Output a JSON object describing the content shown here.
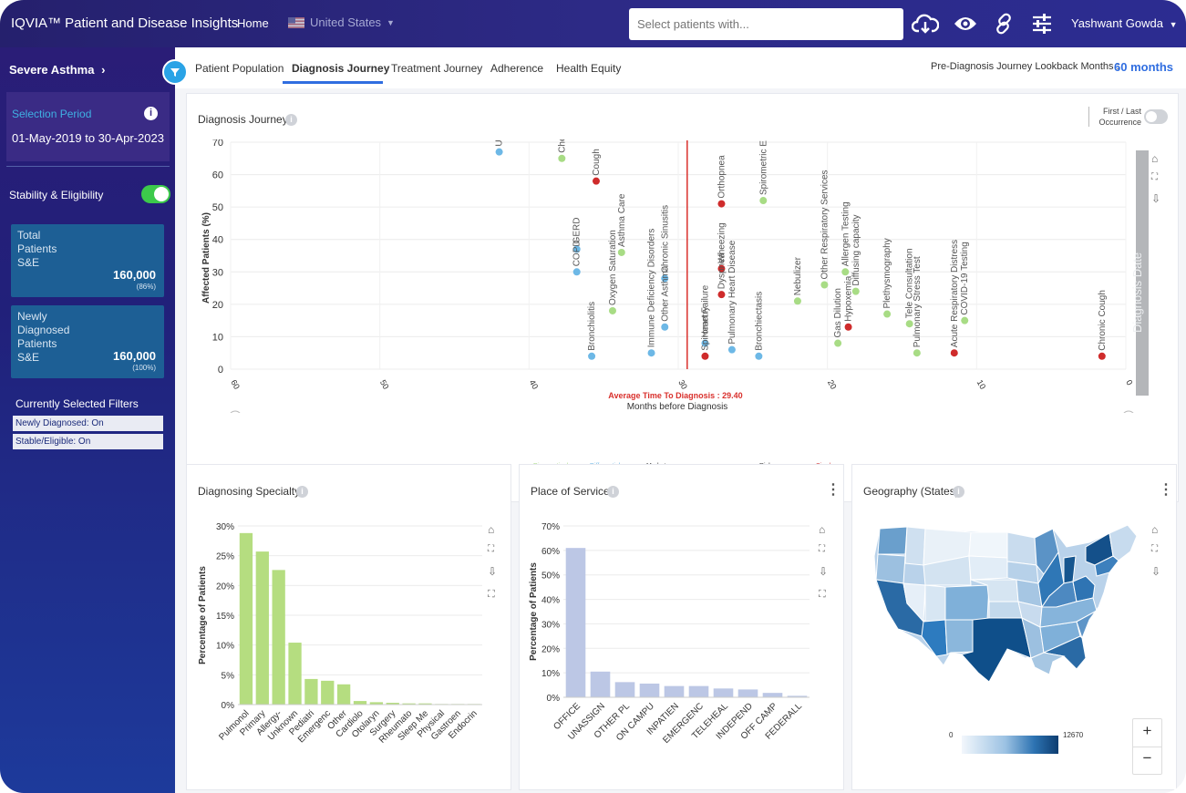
{
  "header": {
    "brand": "IQVIA™ Patient and Disease Insights",
    "home": "Home",
    "country": "United States",
    "search_placeholder": "Select patients with...",
    "user": "Yashwant Gowda"
  },
  "sidebar": {
    "condition": "Severe Asthma",
    "selection_label": "Selection Period",
    "selection_value": "01-May-2019 to 30-Apr-2023",
    "stability_label": "Stability & Eligibility",
    "cards": [
      {
        "label_lines": [
          "Total",
          "Patients",
          "S&E"
        ],
        "value": "160,000",
        "pct": "(86%)"
      },
      {
        "label_lines": [
          "Newly",
          "Diagnosed",
          "Patients",
          "S&E"
        ],
        "value": "160,000",
        "pct": "(100%)"
      }
    ],
    "filters_title": "Currently Selected Filters",
    "filters": [
      "Newly Diagnosed: On",
      "Stable/Eligible: On"
    ]
  },
  "tabs": [
    "Patient Population",
    "Diagnosis Journey",
    "Treatment Journey",
    "Adherence",
    "Health Equity"
  ],
  "active_tab": "Diagnosis Journey",
  "lookback": {
    "label": "Pre-Diagnosis Journey Lookback Months :",
    "value": "60 months"
  },
  "journey": {
    "title": "Diagnosis Journey",
    "toggle_label": "First / Last Occurrence",
    "side_label": "Diagnosis Date",
    "avg_label": "Average Time To Diagnosis : 29.40"
  },
  "panels": {
    "specialty": "Diagnosing Specialty",
    "place": "Place of Service",
    "geography": "Geography (States)"
  },
  "map_legend": {
    "min": "0",
    "max": "12670"
  },
  "zoom": {
    "plus": "+",
    "minus": "−"
  },
  "chart_data": [
    {
      "type": "scatter",
      "title": "Diagnosis Journey",
      "xlabel": "Months before Diagnosis",
      "ylabel": "Affected Patients (%)",
      "xlim": [
        60,
        0
      ],
      "ylim": [
        0,
        70
      ],
      "xticks": [
        "60",
        "50",
        "40",
        "30",
        "20",
        "10",
        "0"
      ],
      "yticks": [
        "0",
        "10",
        "20",
        "30",
        "40",
        "50",
        "60",
        "70"
      ],
      "reference_line": {
        "x": 29.4,
        "label": "Average Time To Diagnosis : 29.40"
      },
      "legend": [
        {
          "name": "Comorbidity",
          "color": "#dde3ea"
        },
        {
          "name": "Diagnostics/ Procedure",
          "color": "#a8dc85"
        },
        {
          "name": "Differential Diagnosis",
          "color": "#6db8e6"
        },
        {
          "name": "Market Definition",
          "color": "#dde3ea"
        },
        {
          "name": "Medication",
          "color": "#dde3ea"
        },
        {
          "name": "Risk Factor",
          "color": "#dde3ea"
        },
        {
          "name": "Sign/ Symptom",
          "color": "#cf2b2b"
        },
        {
          "name": "Specialty",
          "color": "#dde3ea"
        }
      ],
      "points": [
        {
          "label": "Unsp",
          "x": 42.0,
          "y": 67,
          "cat": "diff"
        },
        {
          "label": "Chest",
          "x": 37.8,
          "y": 65,
          "cat": "diag"
        },
        {
          "label": "Cough",
          "x": 35.5,
          "y": 58,
          "cat": "sign"
        },
        {
          "label": "GERD",
          "x": 36.8,
          "y": 37,
          "cat": "diff"
        },
        {
          "label": "COPD",
          "x": 36.8,
          "y": 30,
          "cat": "diff"
        },
        {
          "label": "Bronchiolitis",
          "x": 35.8,
          "y": 4,
          "cat": "diff"
        },
        {
          "label": "Oxygen Saturation",
          "x": 34.4,
          "y": 18,
          "cat": "diag"
        },
        {
          "label": "Asthma Care",
          "x": 33.8,
          "y": 36,
          "cat": "diag"
        },
        {
          "label": "Immune Deficiency Disorders",
          "x": 31.8,
          "y": 5,
          "cat": "diff"
        },
        {
          "label": "Chronic Sinusitis",
          "x": 30.9,
          "y": 28,
          "cat": "diff"
        },
        {
          "label": "Other Asthma",
          "x": 30.9,
          "y": 13,
          "cat": "diff"
        },
        {
          "label": "Heart Failure",
          "x": 28.2,
          "y": 8,
          "cat": "diff"
        },
        {
          "label": "Spirometry",
          "x": 28.2,
          "y": 4,
          "cat": "sign"
        },
        {
          "label": "Orthopnea",
          "x": 27.1,
          "y": 51,
          "cat": "sign"
        },
        {
          "label": "Wheezing",
          "x": 27.1,
          "y": 31,
          "cat": "sign"
        },
        {
          "label": "Dyspnea",
          "x": 27.1,
          "y": 23,
          "cat": "sign"
        },
        {
          "label": "Pulmonary Heart Disease",
          "x": 26.4,
          "y": 6,
          "cat": "diff"
        },
        {
          "label": "Spirometric E",
          "x": 24.3,
          "y": 52,
          "cat": "diag"
        },
        {
          "label": "Bronchiectasis",
          "x": 24.6,
          "y": 4,
          "cat": "diff"
        },
        {
          "label": "Nebulizer",
          "x": 22.0,
          "y": 21,
          "cat": "diag"
        },
        {
          "label": "Other Respiratory Services",
          "x": 20.2,
          "y": 26,
          "cat": "diag"
        },
        {
          "label": "Gas Dilution",
          "x": 19.3,
          "y": 8,
          "cat": "diag"
        },
        {
          "label": "Allergen Testing",
          "x": 18.8,
          "y": 30,
          "cat": "diag"
        },
        {
          "label": "Hypoxemia",
          "x": 18.6,
          "y": 13,
          "cat": "sign"
        },
        {
          "label": "Diffusing capacity",
          "x": 18.1,
          "y": 24,
          "cat": "diag"
        },
        {
          "label": "Plethysmography",
          "x": 16.0,
          "y": 17,
          "cat": "diag"
        },
        {
          "label": "Tele Consultation",
          "x": 14.5,
          "y": 14,
          "cat": "diag"
        },
        {
          "label": "Pulmonary Stress Test",
          "x": 14.0,
          "y": 5,
          "cat": "diag"
        },
        {
          "label": "Acute Respiratory Distress",
          "x": 11.5,
          "y": 5,
          "cat": "sign"
        },
        {
          "label": "COVID-19 Testing",
          "x": 10.8,
          "y": 15,
          "cat": "diag"
        },
        {
          "label": "Chronic Cough",
          "x": 1.6,
          "y": 4,
          "cat": "sign"
        }
      ]
    },
    {
      "type": "bar",
      "title": "Diagnosing Specialty",
      "ylabel": "Percentage of Patients",
      "ylim": [
        0,
        30
      ],
      "yticks": [
        "0%",
        "5%",
        "10%",
        "15%",
        "20%",
        "25%",
        "30%"
      ],
      "color": "#b5dd80",
      "categories": [
        "Pulmonol",
        "Primary",
        "Allergy-",
        "Unknown",
        "Pediatri",
        "Emergenc",
        "Other",
        "Cardiolo",
        "Otolaryn",
        "Surgery",
        "Rheumato",
        "Sleep Me",
        "Physical",
        "Gastroen",
        "Endocrin"
      ],
      "values": [
        28.8,
        25.7,
        22.6,
        10.4,
        4.3,
        4.0,
        3.4,
        0.6,
        0.4,
        0.3,
        0.2,
        0.2,
        0.1,
        0.1,
        0.1
      ]
    },
    {
      "type": "bar",
      "title": "Place of Service",
      "ylabel": "Percentage of Patients",
      "ylim": [
        0,
        70
      ],
      "yticks": [
        "0%",
        "10%",
        "20%",
        "30%",
        "40%",
        "50%",
        "60%",
        "70%"
      ],
      "color": "#bcc7e5",
      "categories": [
        "OFFICE",
        "UNASSIGN",
        "OTHER PL",
        "ON CAMPU",
        "INPATIEN",
        "EMERGENC",
        "TELEHEAL",
        "INDEPEND",
        "OFF CAMP",
        "FEDERALL"
      ],
      "values": [
        61,
        10.5,
        6.2,
        5.6,
        4.6,
        4.6,
        3.6,
        3.2,
        1.8,
        0.6
      ]
    }
  ]
}
